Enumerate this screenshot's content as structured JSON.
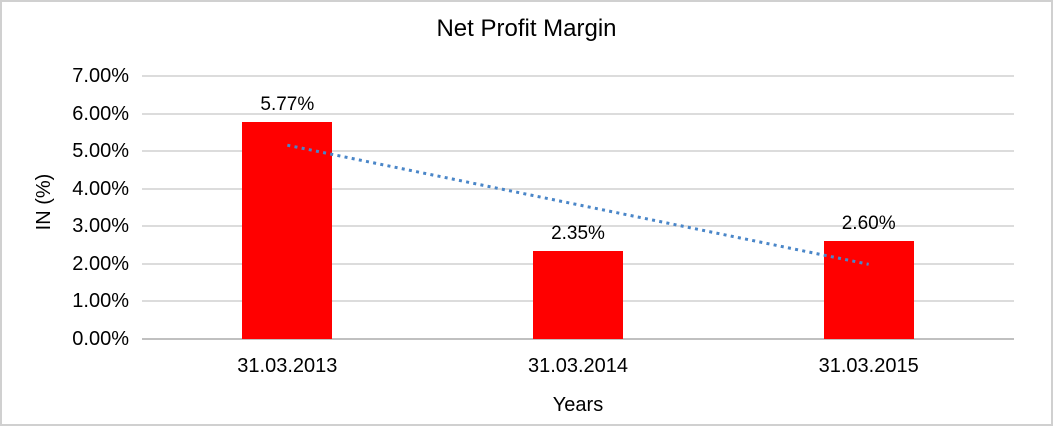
{
  "chart_data": {
    "type": "bar",
    "title": "Net Profit Margin",
    "xlabel": "Years",
    "ylabel": "IN (%)",
    "categories": [
      "31.03.2013",
      "31.03.2014",
      "31.03.2015"
    ],
    "series": [
      {
        "values": [
          5.77,
          2.35,
          2.6
        ],
        "data_labels": [
          "5.77%",
          "2.35%",
          "2.60%"
        ]
      }
    ],
    "ylim": [
      0,
      7
    ],
    "ytick_step": 1,
    "ytick_labels": [
      "0.00%",
      "1.00%",
      "2.00%",
      "3.00%",
      "4.00%",
      "5.00%",
      "6.00%",
      "7.00%"
    ],
    "grid": true,
    "legend": "none",
    "trendline": {
      "kind": "linear",
      "style": "dotted",
      "fit_endpoints_percent": [
        5.16,
        1.99
      ]
    },
    "colors": {
      "bar": "#ff0000",
      "trendline": "#4a86c8",
      "grid": "#dcdcdc",
      "axis_line": "#c0c0c0",
      "text": "#000000",
      "frame_border": "#d0d0d0",
      "background": "#ffffff"
    }
  }
}
